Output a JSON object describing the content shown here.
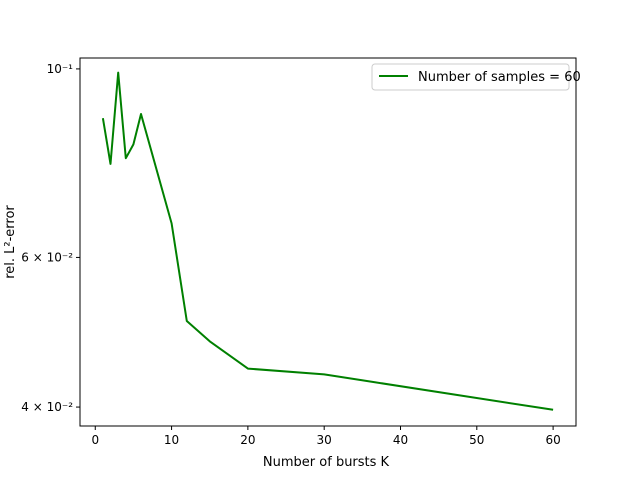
{
  "chart_data": {
    "type": "line",
    "title": "",
    "xlabel": "Number of bursts K",
    "ylabel": "rel. L²-error",
    "yscale": "log",
    "xlim": [
      -2,
      63
    ],
    "ylim": [
      0.038,
      0.103
    ],
    "grid": false,
    "legend_placement": "top-right",
    "x_ticks": [
      0,
      10,
      20,
      30,
      40,
      50,
      60
    ],
    "x_tick_labels": [
      "0",
      "10",
      "20",
      "30",
      "40",
      "50",
      "60"
    ],
    "y_ticks": [
      0.04,
      0.06,
      0.1
    ],
    "y_tick_labels": [
      "4 × 10⁻²",
      "6 × 10⁻²",
      "10⁻¹"
    ],
    "series": [
      {
        "name": "Number of samples = 60",
        "color": "#008000",
        "x": [
          1,
          2,
          3,
          4,
          5,
          6,
          10,
          12,
          15,
          20,
          30,
          60
        ],
        "y": [
          0.0875,
          0.0773,
          0.099,
          0.0785,
          0.0815,
          0.0885,
          0.0658,
          0.0505,
          0.0478,
          0.0444,
          0.0437,
          0.0397
        ]
      }
    ]
  }
}
